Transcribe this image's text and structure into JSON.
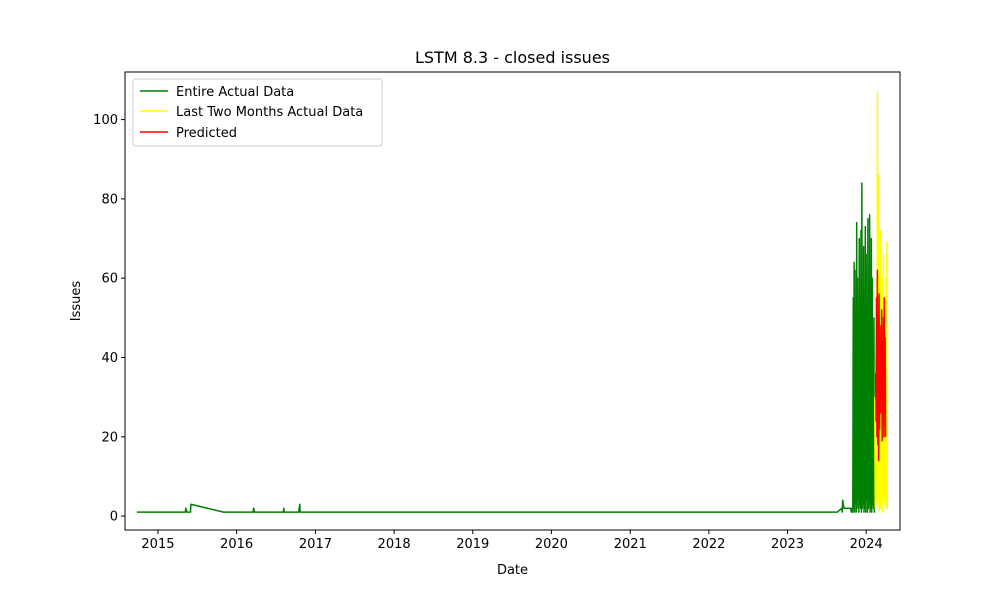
{
  "chart_data": {
    "type": "line",
    "title": "LSTM 8.3 - closed issues",
    "xlabel": "Date",
    "ylabel": "Issues",
    "xlim": [
      "2014-08-01",
      "2024-06-06"
    ],
    "ylim": [
      -3.5,
      112
    ],
    "x_ticks": [
      "2015",
      "2016",
      "2017",
      "2018",
      "2019",
      "2020",
      "2021",
      "2022",
      "2023",
      "2024"
    ],
    "y_ticks": [
      0,
      20,
      40,
      60,
      80,
      100
    ],
    "grid": false,
    "legend_position": "upper-left",
    "series": [
      {
        "name": "Entire Actual Data",
        "color": "#008000",
        "x": [
          "2014-09-25",
          "2015-05-08",
          "2015-05-10",
          "2015-05-15",
          "2015-06-01",
          "2015-06-03",
          "2015-11-01",
          "2016-03-18",
          "2016-03-20",
          "2016-03-25",
          "2016-08-05",
          "2016-08-07",
          "2016-08-09",
          "2016-10-15",
          "2016-10-20",
          "2016-10-22",
          "2023-08-20",
          "2023-09-10",
          "2023-09-12",
          "2023-09-14",
          "2023-09-20",
          "2023-10-20",
          "2023-10-25",
          "2023-10-28",
          "2023-10-31",
          "2023-11-02",
          "2023-11-04",
          "2023-11-06",
          "2023-11-08",
          "2023-11-10",
          "2023-11-12",
          "2023-11-14",
          "2023-11-16",
          "2023-11-18",
          "2023-11-20",
          "2023-11-22",
          "2023-11-24",
          "2023-11-26",
          "2023-11-28",
          "2023-11-30",
          "2023-12-02",
          "2023-12-04",
          "2023-12-06",
          "2023-12-08",
          "2023-12-10",
          "2023-12-12",
          "2023-12-14",
          "2023-12-16",
          "2023-12-18",
          "2023-12-20",
          "2023-12-22",
          "2023-12-24",
          "2023-12-26",
          "2023-12-28",
          "2023-12-30",
          "2024-01-01",
          "2024-01-03",
          "2024-01-05",
          "2024-01-07",
          "2024-01-09",
          "2024-01-11",
          "2024-01-13",
          "2024-01-15",
          "2024-01-17",
          "2024-01-19",
          "2024-01-21",
          "2024-01-23",
          "2024-01-25",
          "2024-01-27",
          "2024-01-29",
          "2024-01-31",
          "2024-02-02",
          "2024-02-04",
          "2024-02-06",
          "2024-02-08",
          "2024-02-10"
        ],
        "y": [
          1,
          1,
          2,
          1,
          1,
          3,
          1,
          1,
          2,
          1,
          1,
          2,
          1,
          1,
          3,
          1,
          1,
          2,
          1,
          4,
          2,
          2,
          1,
          2,
          1,
          55,
          2,
          64,
          1,
          62,
          3,
          45,
          1,
          74,
          2,
          60,
          4,
          52,
          1,
          70,
          3,
          48,
          2,
          72,
          1,
          84,
          2,
          44,
          3,
          68,
          1,
          50,
          2,
          73,
          1,
          66,
          4,
          40,
          1,
          75,
          2,
          56,
          3,
          76,
          1,
          48,
          2,
          70,
          1,
          60,
          3,
          20,
          2,
          50,
          1,
          30
        ]
      },
      {
        "name": "Last Two Months Actual Data",
        "color": "#ffff00",
        "x": [
          "2024-02-10",
          "2024-02-12",
          "2024-02-14",
          "2024-02-16",
          "2024-02-18",
          "2024-02-20",
          "2024-02-22",
          "2024-02-24",
          "2024-02-26",
          "2024-02-28",
          "2024-03-01",
          "2024-03-03",
          "2024-03-05",
          "2024-03-07",
          "2024-03-09",
          "2024-03-11",
          "2024-03-13",
          "2024-03-15",
          "2024-03-17",
          "2024-03-19",
          "2024-03-21",
          "2024-03-23",
          "2024-03-25",
          "2024-03-27",
          "2024-03-29",
          "2024-03-31",
          "2024-04-02",
          "2024-04-04",
          "2024-04-06",
          "2024-04-08",
          "2024-04-10"
        ],
        "y": [
          30,
          2,
          40,
          5,
          60,
          3,
          107,
          2,
          70,
          4,
          86,
          1,
          55,
          3,
          72,
          2,
          50,
          4,
          60,
          1,
          66,
          3,
          40,
          5,
          55,
          2,
          60,
          3,
          69,
          2,
          2
        ]
      },
      {
        "name": "Predicted",
        "color": "#ff0000",
        "x": [
          "2024-02-14",
          "2024-02-16",
          "2024-02-18",
          "2024-02-20",
          "2024-02-22",
          "2024-02-24",
          "2024-02-26",
          "2024-02-28",
          "2024-03-01",
          "2024-03-03",
          "2024-03-05",
          "2024-03-07",
          "2024-03-09",
          "2024-03-11",
          "2024-03-13",
          "2024-03-15",
          "2024-03-17",
          "2024-03-19",
          "2024-03-21",
          "2024-03-23",
          "2024-03-25",
          "2024-03-27",
          "2024-03-29",
          "2024-03-31"
        ],
        "y": [
          36,
          24,
          55,
          20,
          62,
          18,
          50,
          14,
          56,
          22,
          48,
          26,
          44,
          30,
          52,
          19,
          38,
          24,
          50,
          20,
          55,
          28,
          45,
          20
        ]
      }
    ]
  }
}
